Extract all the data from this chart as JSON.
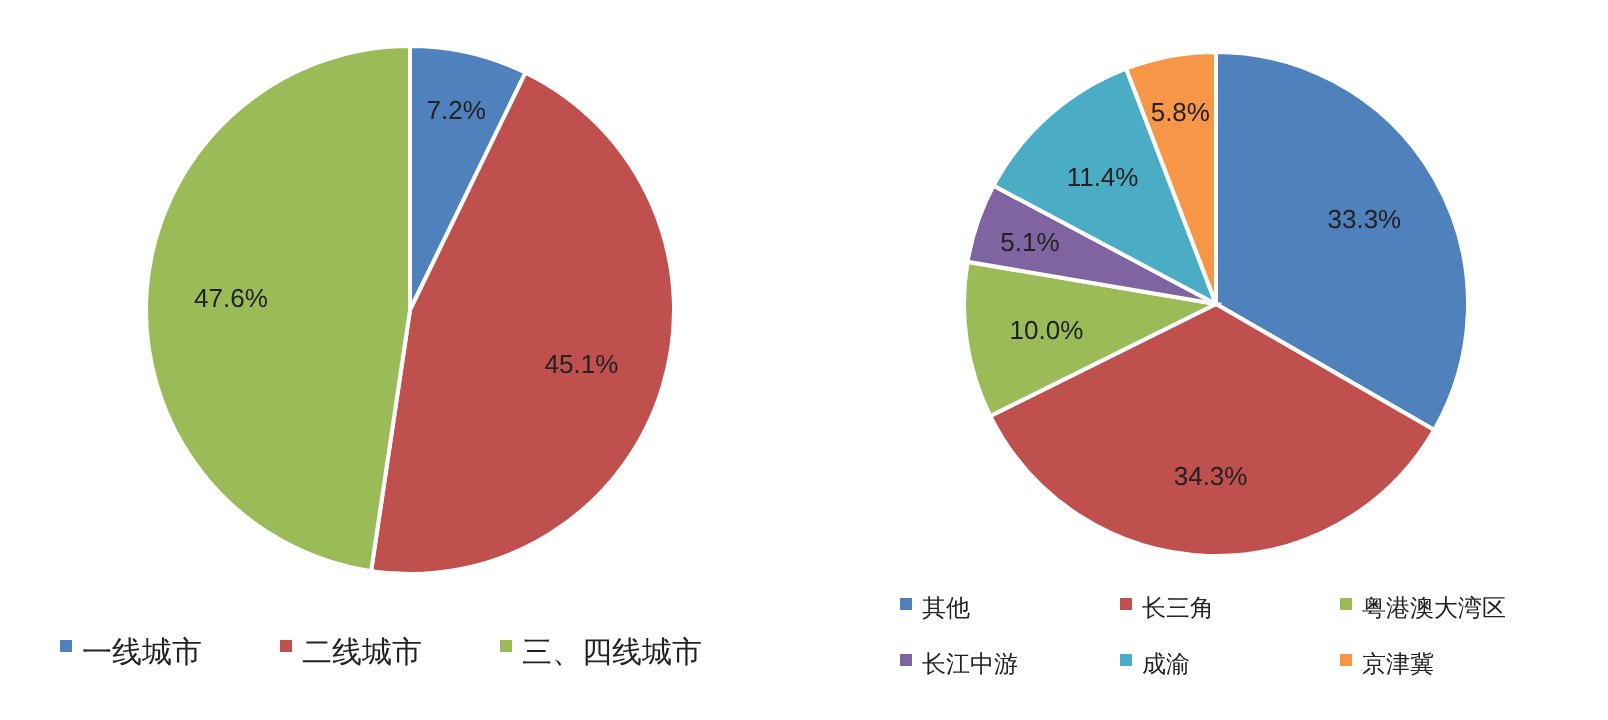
{
  "chart_data": [
    {
      "type": "pie",
      "categories": [
        "一线城市",
        "二线城市",
        "三、四线城市"
      ],
      "values": [
        7.2,
        45.1,
        47.6
      ],
      "value_labels": [
        "7.2%",
        "45.1%",
        "47.6%"
      ],
      "colors": [
        "#4f81bd",
        "#c0504d",
        "#9bbb59"
      ],
      "legend": "bottom"
    },
    {
      "type": "pie",
      "categories": [
        "其他",
        "长三角",
        "粤港澳大湾区",
        "长江中游",
        "成渝",
        "京津冀"
      ],
      "values": [
        33.3,
        34.3,
        10.0,
        5.1,
        11.4,
        5.8
      ],
      "value_labels": [
        "33.3%",
        "34.3%",
        "10.0%",
        "5.1%",
        "11.4%",
        "5.8%"
      ],
      "colors": [
        "#4f81bd",
        "#c0504d",
        "#9bbb59",
        "#8064a2",
        "#4bacc6",
        "#f79646"
      ],
      "legend": "bottom"
    }
  ]
}
